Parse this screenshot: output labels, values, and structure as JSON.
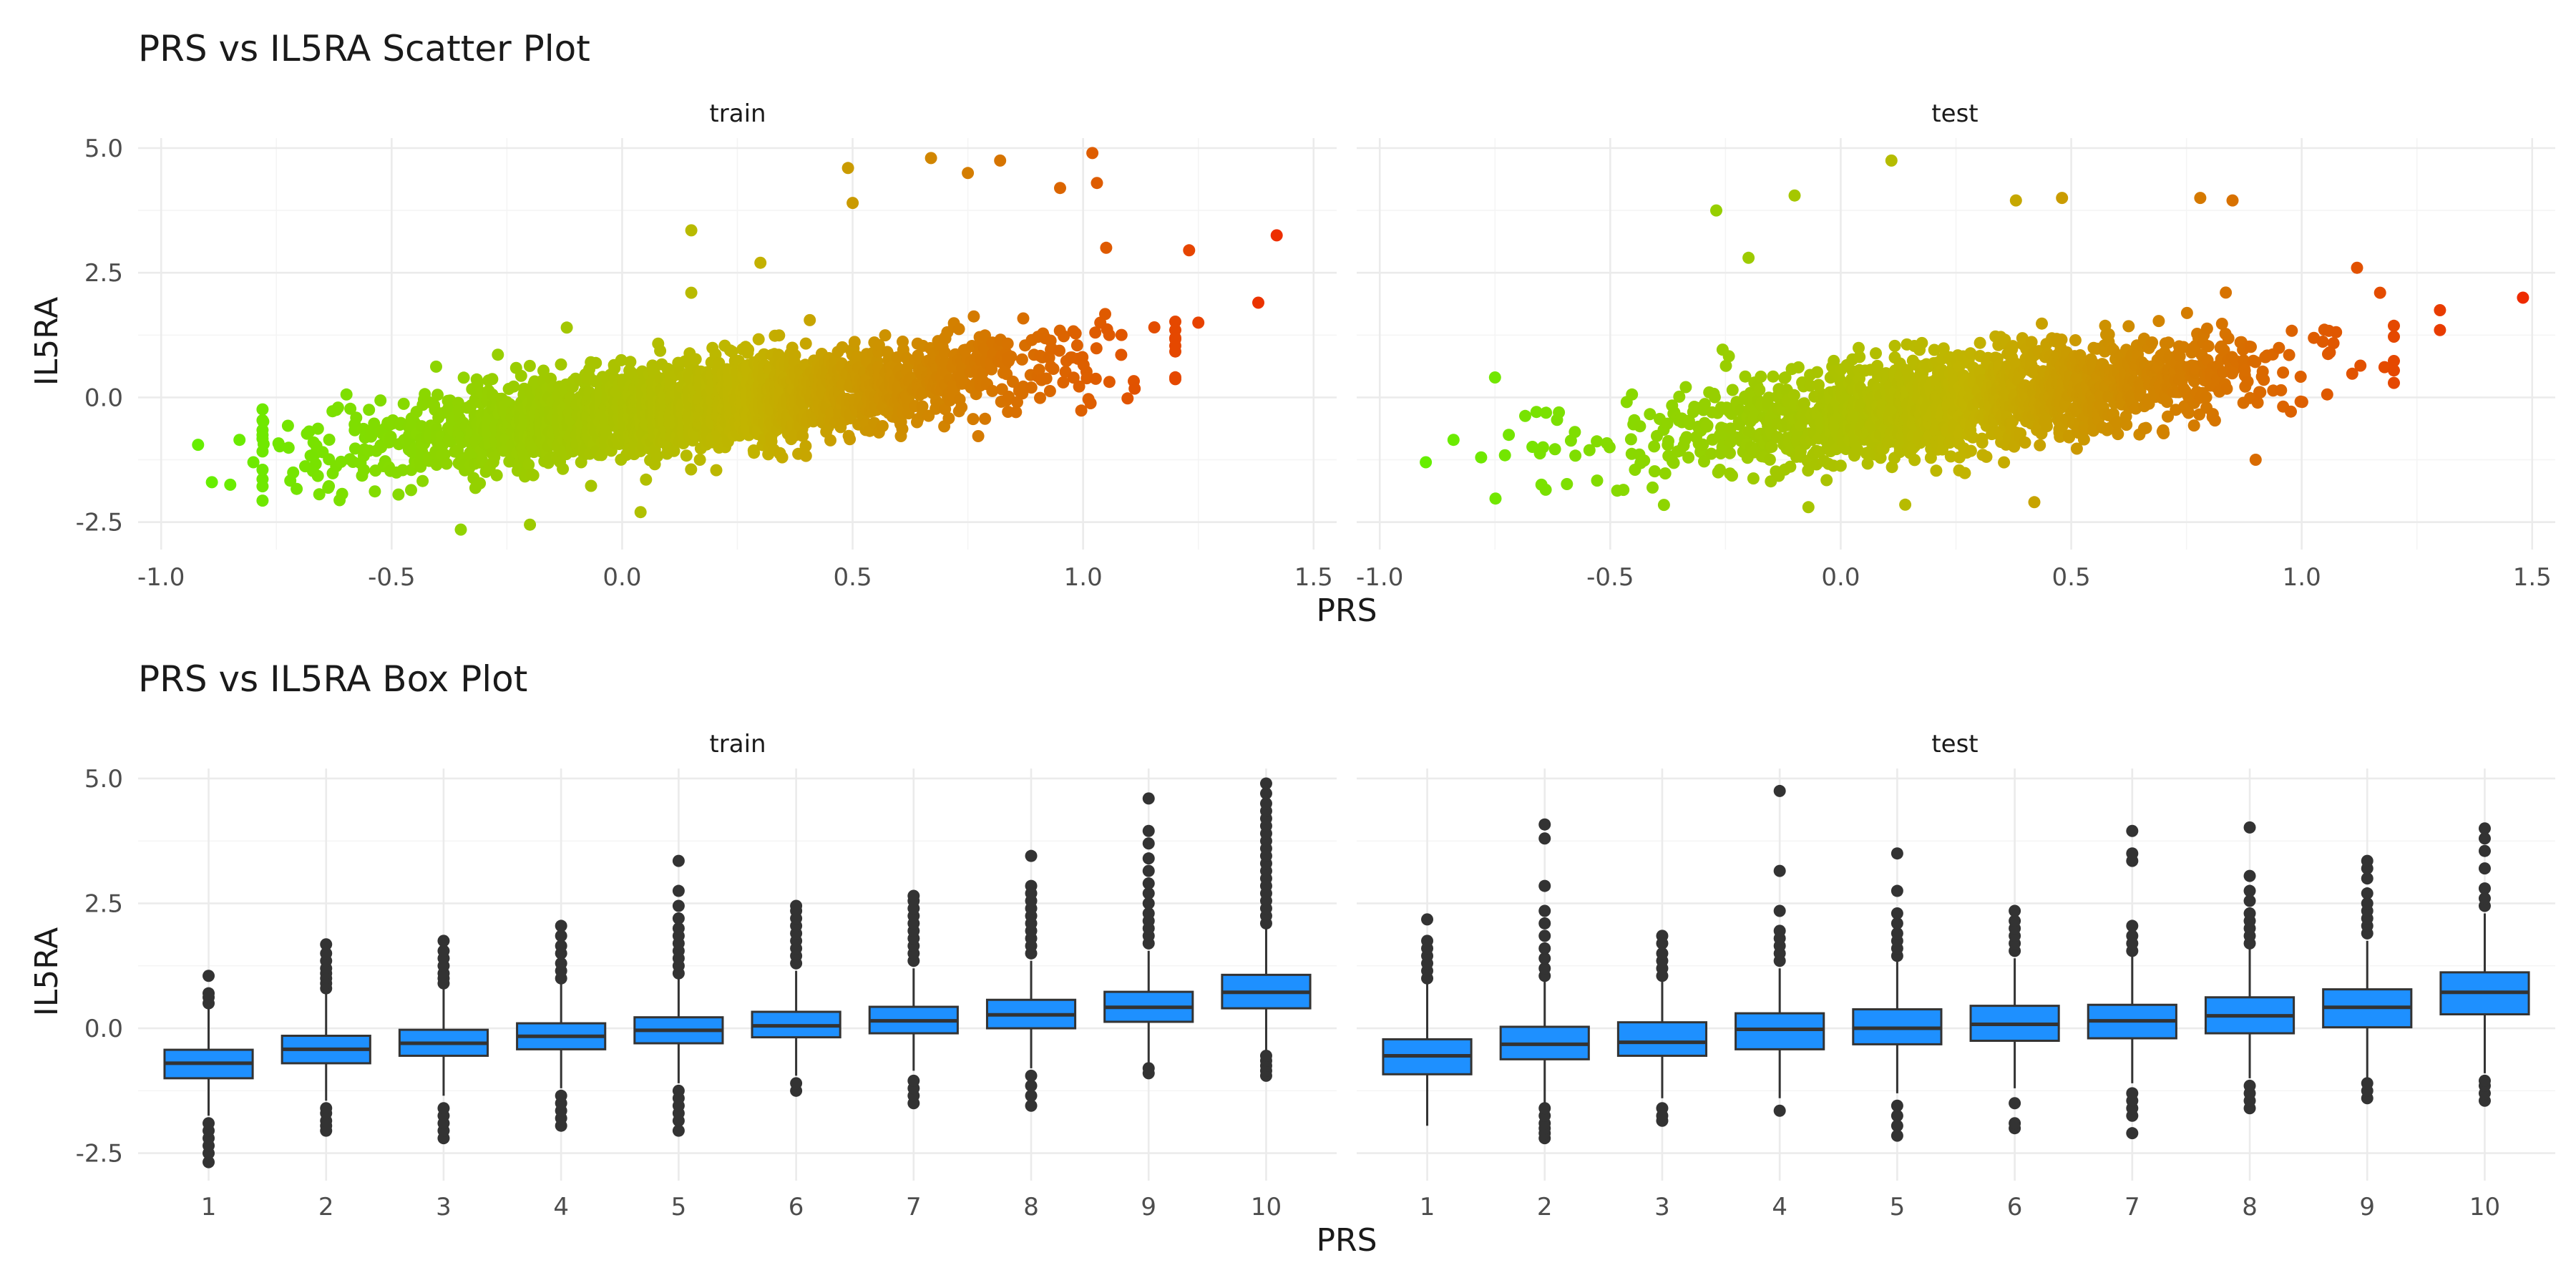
{
  "chart_data": [
    {
      "type": "scatter",
      "title": "PRS vs IL5RA Scatter Plot",
      "xlabel": "PRS",
      "ylabel": "IL5RA",
      "xlim": [
        -1.05,
        1.55
      ],
      "ylim": [
        -3.05,
        5.2
      ],
      "x_ticks": [
        "-1.0",
        "-0.5",
        "0.0",
        "0.5",
        "1.0",
        "1.5"
      ],
      "y_ticks": [
        "-2.5",
        "0.0",
        "2.5",
        "5.0"
      ],
      "x_tick_values": [
        -1.0,
        -0.5,
        0.0,
        0.5,
        1.0,
        1.5
      ],
      "y_tick_values": [
        -2.5,
        0.0,
        2.5,
        5.0
      ],
      "color_scale": {
        "low": "#66ee00",
        "mid": "#c2b400",
        "high": "#ee2b00",
        "domain": [
          -0.9,
          1.45
        ]
      },
      "trend": {
        "slope": 1.1,
        "intercept": -0.36
      },
      "panels": [
        {
          "label": "train",
          "n_points": 2600,
          "x_center": 0.16,
          "x_spread": 0.36,
          "y_spread": 0.58,
          "points": [
            {
              "x": -0.92,
              "y": -0.95
            },
            {
              "x": -0.89,
              "y": -1.7
            },
            {
              "x": -0.85,
              "y": -1.75
            },
            {
              "x": -0.83,
              "y": -0.85
            },
            {
              "x": -0.8,
              "y": -1.3
            },
            {
              "x": -0.62,
              "y": -0.25
            },
            {
              "x": -0.35,
              "y": -2.65
            },
            {
              "x": -0.2,
              "y": -2.55
            },
            {
              "x": -0.12,
              "y": 1.4
            },
            {
              "x": 0.04,
              "y": -2.3
            },
            {
              "x": 0.15,
              "y": 2.1
            },
            {
              "x": 0.15,
              "y": 3.35
            },
            {
              "x": 0.3,
              "y": 2.7
            },
            {
              "x": 0.49,
              "y": 4.6
            },
            {
              "x": 0.5,
              "y": 3.9
            },
            {
              "x": 0.67,
              "y": 4.8
            },
            {
              "x": 0.75,
              "y": 4.5
            },
            {
              "x": 0.82,
              "y": 4.75
            },
            {
              "x": 0.95,
              "y": 4.2
            },
            {
              "x": 1.02,
              "y": 4.9
            },
            {
              "x": 1.03,
              "y": 4.3
            },
            {
              "x": 1.05,
              "y": 3.0
            },
            {
              "x": 1.2,
              "y": 1.35
            },
            {
              "x": 1.23,
              "y": 2.95
            },
            {
              "x": 1.25,
              "y": 1.5
            },
            {
              "x": 1.38,
              "y": 1.9
            },
            {
              "x": 1.42,
              "y": 3.25
            }
          ]
        },
        {
          "label": "test",
          "n_points": 1700,
          "x_center": 0.27,
          "x_spread": 0.34,
          "y_spread": 0.66,
          "points": [
            {
              "x": -0.9,
              "y": -1.3
            },
            {
              "x": -0.84,
              "y": -0.85
            },
            {
              "x": -0.75,
              "y": 0.4
            },
            {
              "x": -0.72,
              "y": -0.75
            },
            {
              "x": -0.64,
              "y": -1.85
            },
            {
              "x": -0.27,
              "y": 3.75
            },
            {
              "x": -0.2,
              "y": 2.8
            },
            {
              "x": -0.1,
              "y": 4.05
            },
            {
              "x": -0.07,
              "y": -2.2
            },
            {
              "x": 0.11,
              "y": 4.75
            },
            {
              "x": 0.14,
              "y": -2.15
            },
            {
              "x": 0.38,
              "y": 3.95
            },
            {
              "x": 0.42,
              "y": -2.1
            },
            {
              "x": 0.48,
              "y": 4.0
            },
            {
              "x": 0.78,
              "y": 4.0
            },
            {
              "x": 0.85,
              "y": 3.95
            },
            {
              "x": 0.9,
              "y": -1.25
            },
            {
              "x": 1.12,
              "y": 2.6
            },
            {
              "x": 1.17,
              "y": 2.1
            },
            {
              "x": 1.3,
              "y": 1.75
            },
            {
              "x": 1.3,
              "y": 1.35
            },
            {
              "x": 1.48,
              "y": 2.0
            }
          ]
        }
      ]
    },
    {
      "type": "box",
      "title": "PRS vs IL5RA Box Plot",
      "xlabel": "PRS",
      "ylabel": "IL5RA",
      "ylim": [
        -3.05,
        5.2
      ],
      "y_ticks": [
        "-2.5",
        "0.0",
        "2.5",
        "5.0"
      ],
      "y_tick_values": [
        -2.5,
        0.0,
        2.5,
        5.0
      ],
      "categories": [
        "1",
        "2",
        "3",
        "4",
        "5",
        "6",
        "7",
        "8",
        "9",
        "10"
      ],
      "box_color": "#1e90ff",
      "outline_color": "#333333",
      "panels": [
        {
          "label": "train",
          "boxes": [
            {
              "q1": -1.0,
              "median": -0.7,
              "q3": -0.43,
              "lower": -1.75,
              "upper": 0.42,
              "outliers": [
                -2.68,
                -2.5,
                -2.35,
                -2.2,
                -2.05,
                -1.9,
                0.5,
                0.62,
                0.7,
                1.05
              ]
            },
            {
              "q1": -0.7,
              "median": -0.42,
              "q3": -0.15,
              "lower": -1.45,
              "upper": 0.7,
              "outliers": [
                -2.05,
                -1.95,
                -1.85,
                -1.7,
                -1.6,
                0.8,
                0.9,
                1.0,
                1.1,
                1.2,
                1.35,
                1.5,
                1.68
              ]
            },
            {
              "q1": -0.55,
              "median": -0.3,
              "q3": -0.03,
              "lower": -1.35,
              "upper": 0.8,
              "outliers": [
                -2.2,
                -2.05,
                -1.9,
                -1.75,
                -1.6,
                0.9,
                1.0,
                1.1,
                1.25,
                1.4,
                1.55,
                1.75
              ]
            },
            {
              "q1": -0.42,
              "median": -0.16,
              "q3": 0.1,
              "lower": -1.2,
              "upper": 0.9,
              "outliers": [
                -1.95,
                -1.8,
                -1.65,
                -1.5,
                -1.35,
                1.0,
                1.15,
                1.3,
                1.5,
                1.65,
                1.85,
                2.05
              ]
            },
            {
              "q1": -0.3,
              "median": -0.04,
              "q3": 0.22,
              "lower": -1.1,
              "upper": 1.0,
              "outliers": [
                -2.05,
                -1.85,
                -1.7,
                -1.55,
                -1.4,
                -1.25,
                1.1,
                1.25,
                1.4,
                1.55,
                1.7,
                1.85,
                2.0,
                2.2,
                2.45,
                2.75,
                3.35
              ]
            },
            {
              "q1": -0.18,
              "median": 0.05,
              "q3": 0.33,
              "lower": -0.95,
              "upper": 1.15,
              "outliers": [
                -1.25,
                -1.1,
                1.3,
                1.45,
                1.6,
                1.75,
                1.9,
                2.05,
                2.2,
                2.35,
                2.45
              ]
            },
            {
              "q1": -0.1,
              "median": 0.15,
              "q3": 0.43,
              "lower": -0.85,
              "upper": 1.2,
              "outliers": [
                -1.5,
                -1.35,
                -1.2,
                -1.05,
                1.35,
                1.5,
                1.65,
                1.8,
                1.95,
                2.1,
                2.25,
                2.4,
                2.55,
                2.65
              ]
            },
            {
              "q1": 0.0,
              "median": 0.27,
              "q3": 0.57,
              "lower": -0.8,
              "upper": 1.35,
              "outliers": [
                -1.55,
                -1.35,
                -1.15,
                -0.95,
                1.5,
                1.65,
                1.8,
                1.95,
                2.1,
                2.25,
                2.4,
                2.55,
                2.7,
                2.85,
                3.45
              ]
            },
            {
              "q1": 0.13,
              "median": 0.42,
              "q3": 0.73,
              "lower": -0.7,
              "upper": 1.55,
              "outliers": [
                -0.9,
                -0.8,
                1.7,
                1.85,
                2.0,
                2.15,
                2.3,
                2.5,
                2.7,
                2.9,
                3.15,
                3.4,
                3.7,
                3.95,
                4.6
              ]
            },
            {
              "q1": 0.4,
              "median": 0.72,
              "q3": 1.07,
              "lower": -0.45,
              "upper": 2.0,
              "outliers": [
                -0.95,
                -0.85,
                -0.75,
                -0.65,
                -0.55,
                2.1,
                2.25,
                2.4,
                2.55,
                2.7,
                2.85,
                3.0,
                3.15,
                3.3,
                3.45,
                3.6,
                3.75,
                3.9,
                4.05,
                4.2,
                4.35,
                4.5,
                4.7,
                4.9
              ]
            }
          ]
        },
        {
          "label": "test",
          "boxes": [
            {
              "q1": -0.92,
              "median": -0.55,
              "q3": -0.22,
              "lower": -1.95,
              "upper": 0.9,
              "outliers": [
                1.0,
                1.15,
                1.3,
                1.45,
                1.6,
                1.75,
                2.18
              ]
            },
            {
              "q1": -0.62,
              "median": -0.32,
              "q3": 0.03,
              "lower": -1.5,
              "upper": 0.95,
              "outliers": [
                -2.2,
                -2.1,
                -2.0,
                -1.9,
                -1.75,
                -1.6,
                1.05,
                1.2,
                1.4,
                1.6,
                1.85,
                2.1,
                2.35,
                2.85,
                3.8,
                4.08
              ]
            },
            {
              "q1": -0.55,
              "median": -0.28,
              "q3": 0.12,
              "lower": -1.4,
              "upper": 0.95,
              "outliers": [
                -1.85,
                -1.75,
                -1.6,
                1.05,
                1.2,
                1.35,
                1.5,
                1.7,
                1.85
              ]
            },
            {
              "q1": -0.42,
              "median": -0.02,
              "q3": 0.3,
              "lower": -1.4,
              "upper": 1.2,
              "outliers": [
                -1.65,
                1.35,
                1.5,
                1.65,
                1.8,
                1.95,
                2.35,
                3.15,
                4.75
              ]
            },
            {
              "q1": -0.32,
              "median": 0.0,
              "q3": 0.38,
              "lower": -1.3,
              "upper": 1.35,
              "outliers": [
                -2.15,
                -1.95,
                -1.75,
                -1.55,
                1.45,
                1.6,
                1.75,
                1.9,
                2.1,
                2.3,
                2.75,
                3.5
              ]
            },
            {
              "q1": -0.25,
              "median": 0.08,
              "q3": 0.45,
              "lower": -1.2,
              "upper": 1.4,
              "outliers": [
                -2.0,
                -1.9,
                -1.5,
                1.55,
                1.7,
                1.85,
                2.0,
                2.15,
                2.35
              ]
            },
            {
              "q1": -0.2,
              "median": 0.15,
              "q3": 0.47,
              "lower": -1.1,
              "upper": 1.45,
              "outliers": [
                -2.1,
                -1.75,
                -1.6,
                -1.45,
                -1.3,
                1.55,
                1.7,
                1.85,
                2.05,
                3.35,
                3.5,
                3.95
              ]
            },
            {
              "q1": -0.1,
              "median": 0.25,
              "q3": 0.62,
              "lower": -1.0,
              "upper": 1.6,
              "outliers": [
                -1.6,
                -1.45,
                -1.3,
                -1.15,
                1.7,
                1.85,
                2.0,
                2.15,
                2.3,
                2.55,
                2.75,
                3.05,
                4.02
              ]
            },
            {
              "q1": 0.02,
              "median": 0.42,
              "q3": 0.78,
              "lower": -1.0,
              "upper": 1.75,
              "outliers": [
                -1.4,
                -1.25,
                -1.1,
                1.9,
                2.05,
                2.2,
                2.35,
                2.5,
                2.7,
                3.0,
                3.2,
                3.35
              ]
            },
            {
              "q1": 0.28,
              "median": 0.72,
              "q3": 1.12,
              "lower": -0.9,
              "upper": 2.3,
              "outliers": [
                -1.45,
                -1.3,
                -1.15,
                -1.05,
                2.45,
                2.6,
                2.8,
                3.2,
                3.55,
                3.8,
                4.0
              ]
            }
          ]
        }
      ]
    }
  ]
}
